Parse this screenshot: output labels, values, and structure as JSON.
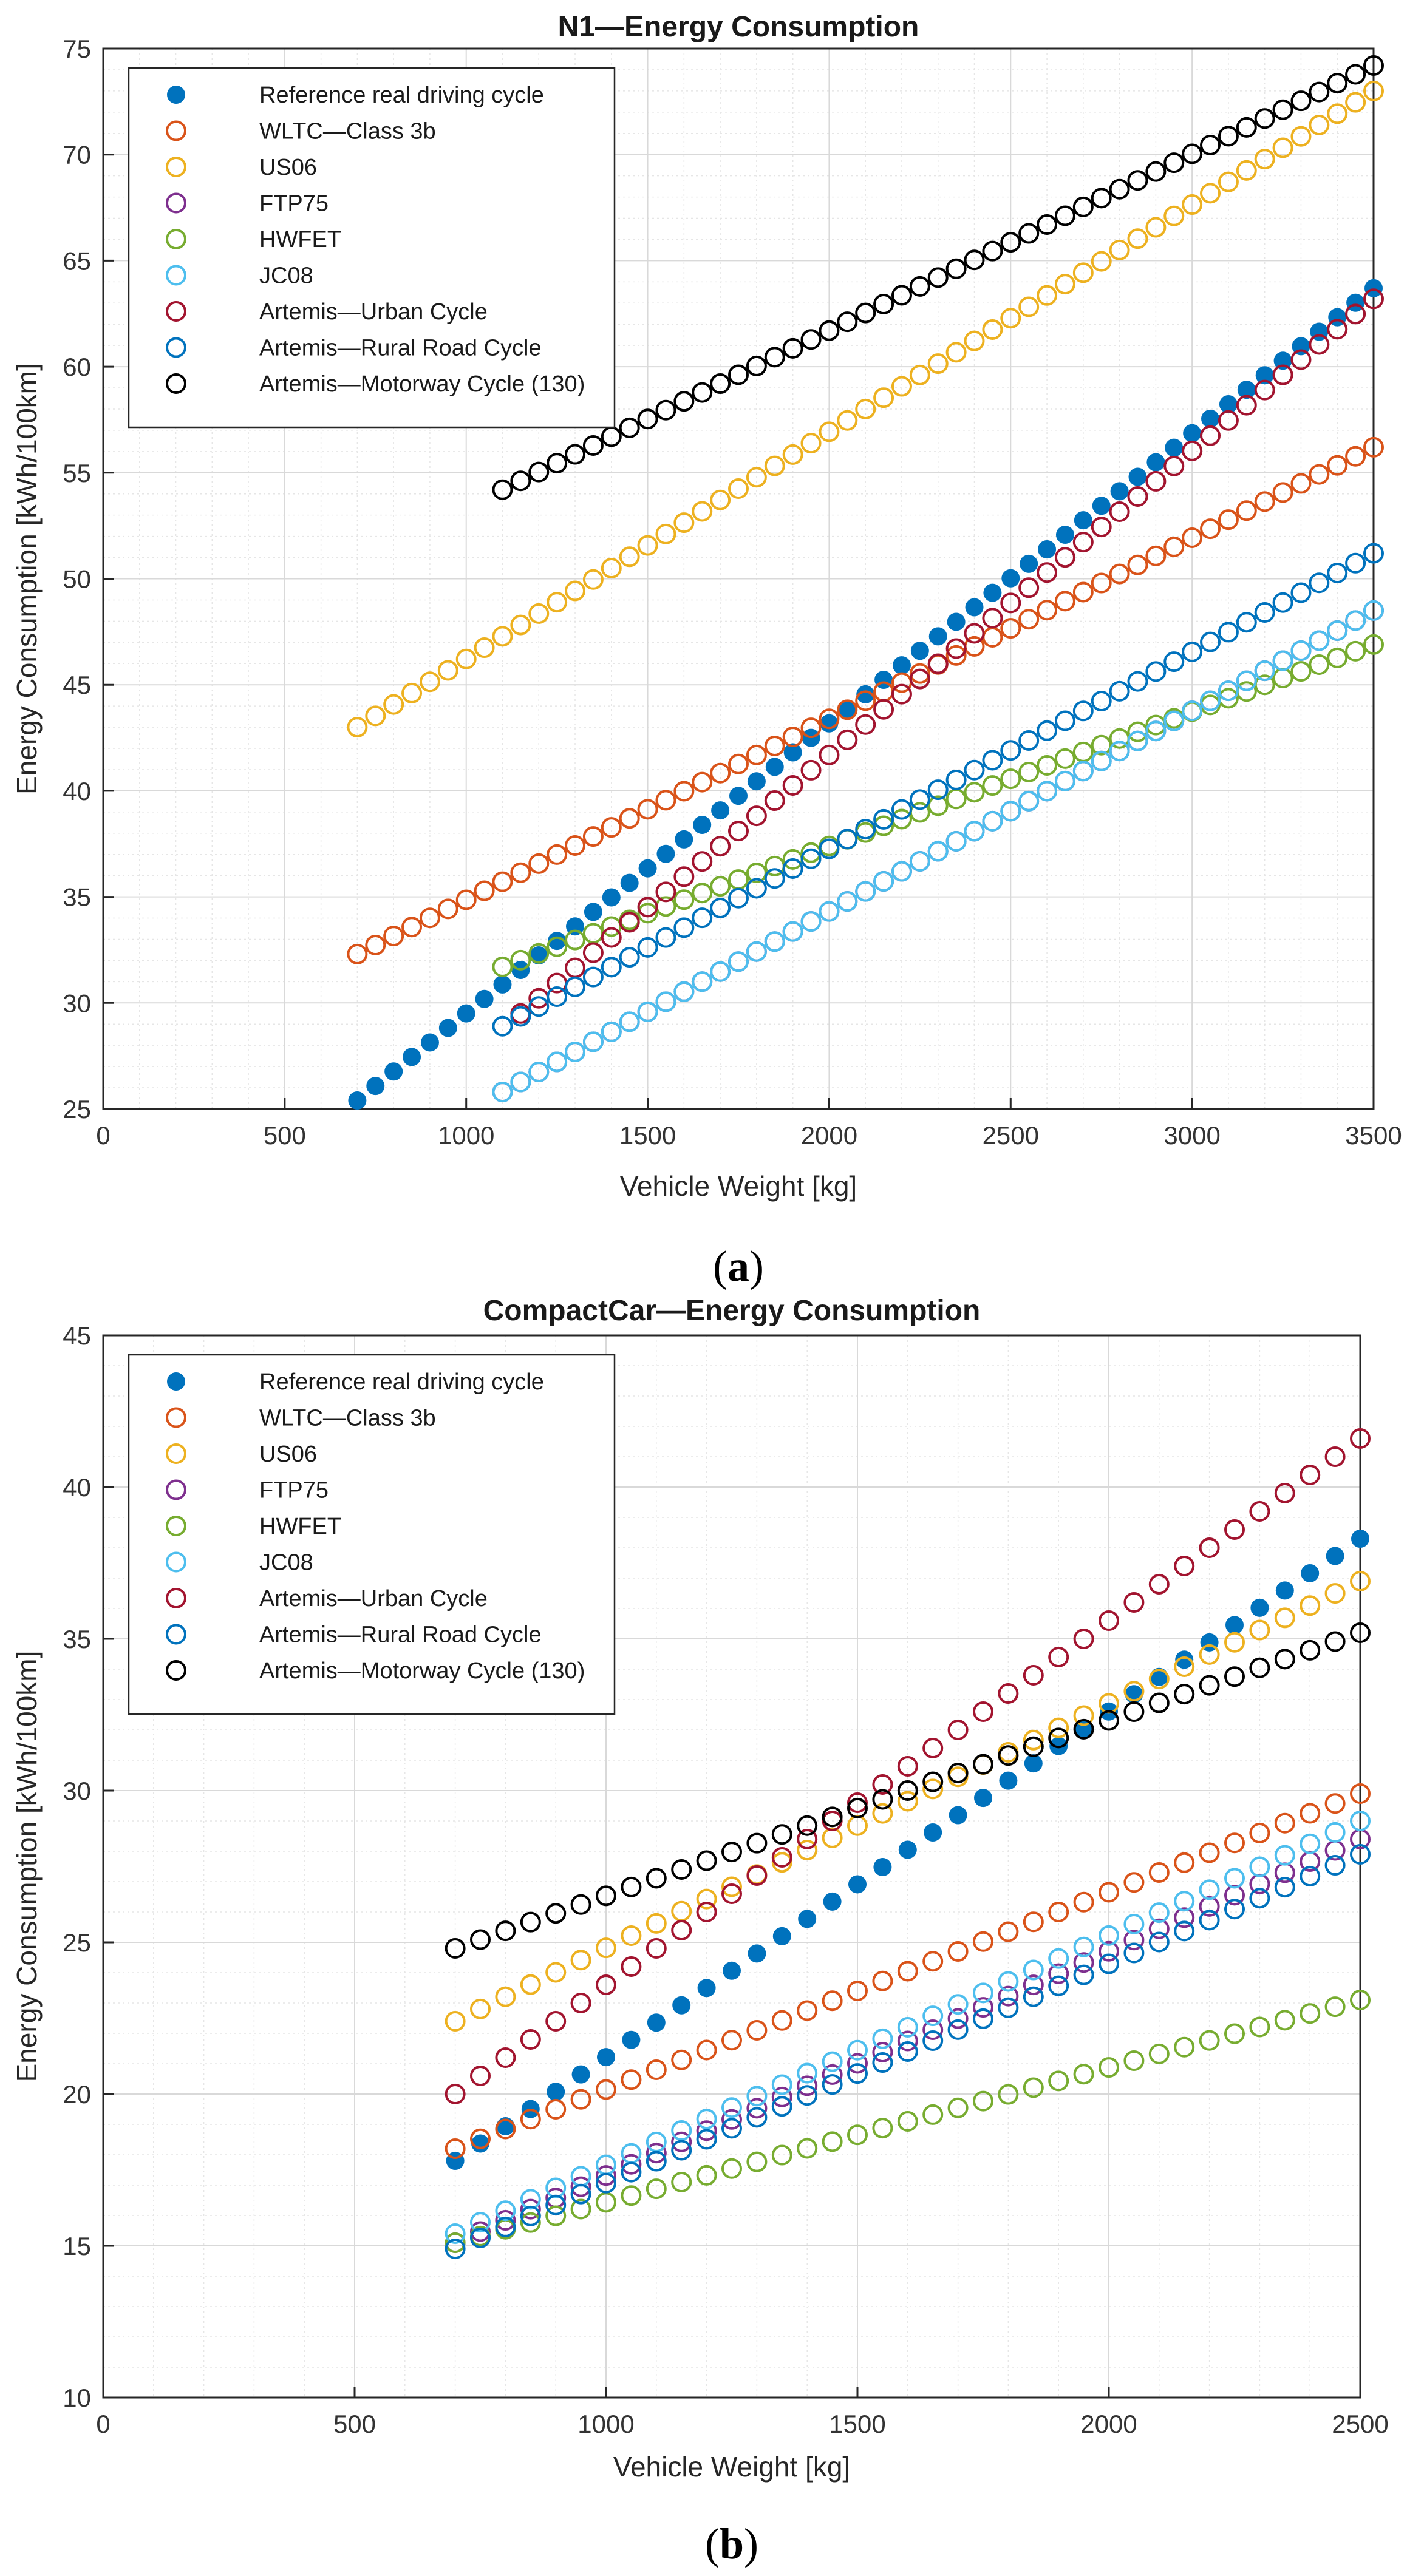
{
  "chart_data": [
    {
      "type": "scatter",
      "title": "N1—Energy Consumption",
      "xlabel": "Vehicle Weight [kg]",
      "ylabel": "Energy Consumption [kWh/100km]",
      "xlim": [
        0,
        3500
      ],
      "ylim": [
        25,
        75
      ],
      "xticks": [
        0,
        500,
        1000,
        1500,
        2000,
        2500,
        3000,
        3500
      ],
      "yticks": [
        25,
        30,
        35,
        40,
        45,
        50,
        55,
        60,
        65,
        70,
        75
      ],
      "grid": true,
      "legend_location": "top-left",
      "caption": "(a)",
      "series": [
        {
          "name": "Reference real driving cycle",
          "marker": "filled",
          "color": "#0072BD",
          "x_start": 700,
          "x_end": 3500,
          "x_step": 50,
          "y_start": 25.4,
          "y_end": 63.7
        },
        {
          "name": "WLTC—Class 3b",
          "marker": "open",
          "color": "#D95319",
          "x_start": 700,
          "x_end": 3500,
          "x_step": 50,
          "y_start": 32.3,
          "y_end": 56.2
        },
        {
          "name": "US06",
          "marker": "open",
          "color": "#EDB120",
          "x_start": 700,
          "x_end": 3500,
          "x_step": 50,
          "y_start": 43.0,
          "y_end": 73.0
        },
        {
          "name": "FTP75",
          "marker": "open",
          "color": "#7E2F8E",
          "x_start": 1100,
          "x_end": 3500,
          "x_step": 50,
          "y_start": 25.8,
          "y_end": 48.5
        },
        {
          "name": "HWFET",
          "marker": "open",
          "color": "#77AC30",
          "x_start": 1100,
          "x_end": 3500,
          "x_step": 50,
          "y_start": 31.7,
          "y_end": 46.9
        },
        {
          "name": "JC08",
          "marker": "open",
          "color": "#4DBEEE",
          "x_start": 1100,
          "x_end": 3500,
          "x_step": 50,
          "y_start": 25.8,
          "y_end": 48.5
        },
        {
          "name": "Artemis—Urban Cycle",
          "marker": "open",
          "color": "#A2142F",
          "x_start": 1150,
          "x_end": 3500,
          "x_step": 50,
          "y_start": 29.5,
          "y_end": 63.2
        },
        {
          "name": "Artemis—Rural Road Cycle",
          "marker": "open",
          "color": "#0072BD",
          "x_start": 1100,
          "x_end": 3500,
          "x_step": 50,
          "y_start": 28.9,
          "y_end": 51.2
        },
        {
          "name": "Artemis—Motorway Cycle (130)",
          "marker": "open",
          "color": "#000000",
          "x_start": 1100,
          "x_end": 3500,
          "x_step": 50,
          "y_start": 54.2,
          "y_end": 74.2
        }
      ]
    },
    {
      "type": "scatter",
      "title": "CompactCar—Energy Consumption",
      "xlabel": "Vehicle Weight [kg]",
      "ylabel": "Energy Consumption [kWh/100km]",
      "xlim": [
        0,
        2500
      ],
      "ylim": [
        10,
        45
      ],
      "xticks": [
        0,
        500,
        1000,
        1500,
        2000,
        2500
      ],
      "yticks": [
        10,
        15,
        20,
        25,
        30,
        35,
        40,
        45
      ],
      "grid": true,
      "legend_location": "top-left",
      "caption": "(b)",
      "series": [
        {
          "name": "Reference real driving cycle",
          "marker": "filled",
          "color": "#0072BD",
          "x_start": 700,
          "x_end": 2500,
          "x_step": 50,
          "y_start": 17.8,
          "y_end": 38.3
        },
        {
          "name": "WLTC—Class 3b",
          "marker": "open",
          "color": "#D95319",
          "x_start": 700,
          "x_end": 2500,
          "x_step": 50,
          "y_start": 18.2,
          "y_end": 29.9
        },
        {
          "name": "US06",
          "marker": "open",
          "color": "#EDB120",
          "x_start": 700,
          "x_end": 2500,
          "x_step": 50,
          "y_start": 22.4,
          "y_end": 36.9
        },
        {
          "name": "FTP75",
          "marker": "open",
          "color": "#7E2F8E",
          "x_start": 700,
          "x_end": 2500,
          "x_step": 50,
          "y_start": 15.1,
          "y_end": 28.4
        },
        {
          "name": "HWFET",
          "marker": "open",
          "color": "#77AC30",
          "x_start": 700,
          "x_end": 2500,
          "x_step": 50,
          "y_start": 15.1,
          "y_end": 23.1
        },
        {
          "name": "JC08",
          "marker": "open",
          "color": "#4DBEEE",
          "x_start": 700,
          "x_end": 2500,
          "x_step": 50,
          "y_start": 15.4,
          "y_end": 29.0
        },
        {
          "name": "Artemis—Urban Cycle",
          "marker": "open",
          "color": "#A2142F",
          "x_start": 700,
          "x_end": 2500,
          "x_step": 50,
          "y_start": 20.0,
          "y_end": 41.6
        },
        {
          "name": "Artemis—Rural Road Cycle",
          "marker": "open",
          "color": "#0072BD",
          "x_start": 700,
          "x_end": 2500,
          "x_step": 50,
          "y_start": 14.9,
          "y_end": 27.9
        },
        {
          "name": "Artemis—Motorway Cycle (130)",
          "marker": "open",
          "color": "#000000",
          "x_start": 700,
          "x_end": 2500,
          "x_step": 50,
          "y_start": 24.8,
          "y_end": 35.2
        }
      ]
    }
  ]
}
